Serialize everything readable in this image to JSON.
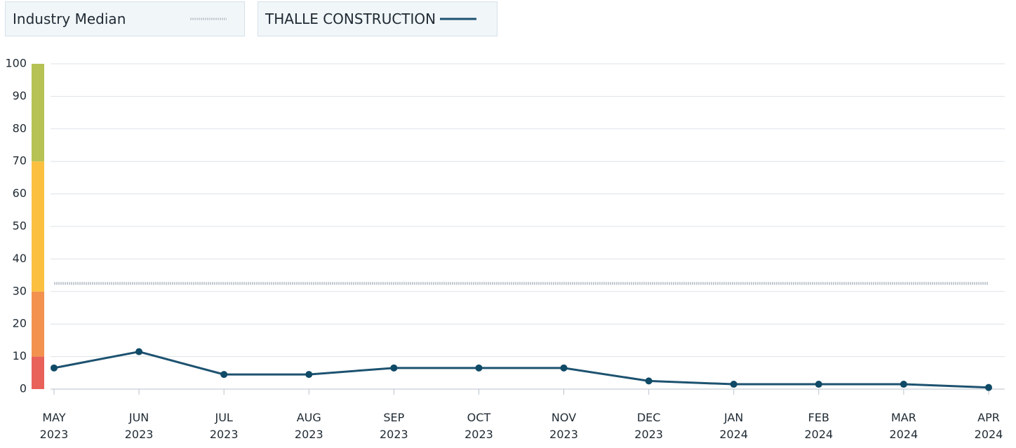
{
  "chart_data": {
    "type": "line",
    "categories": [
      "MAY 2023",
      "JUN 2023",
      "JUL 2023",
      "AUG 2023",
      "SEP 2023",
      "OCT 2023",
      "NOV 2023",
      "DEC 2023",
      "JAN 2024",
      "FEB 2024",
      "MAR 2024",
      "APR 2024"
    ],
    "series": [
      {
        "name": "Industry Median",
        "color": "#c3cad1",
        "dashed": true,
        "values": [
          32.5,
          32.5,
          32.5,
          32.5,
          32.5,
          32.5,
          32.5,
          32.5,
          32.5,
          32.5,
          32.5,
          32.5
        ]
      },
      {
        "name": "THALLE CONSTRUCTION",
        "color": "#1d5270",
        "dashed": false,
        "values": [
          6.5,
          11.5,
          4.5,
          4.5,
          6.5,
          6.5,
          6.5,
          2.5,
          1.5,
          1.5,
          1.5,
          0.5
        ]
      }
    ],
    "bands": [
      {
        "from": 0,
        "to": 10,
        "color": "#e8625a"
      },
      {
        "from": 10,
        "to": 30,
        "color": "#f2924e"
      },
      {
        "from": 30,
        "to": 70,
        "color": "#fbc03f"
      },
      {
        "from": 70,
        "to": 100,
        "color": "#b6c254"
      }
    ],
    "ylim": [
      0,
      100
    ],
    "yticks": [
      0,
      10,
      20,
      30,
      40,
      50,
      60,
      70,
      80,
      90,
      100
    ],
    "grid": true
  }
}
